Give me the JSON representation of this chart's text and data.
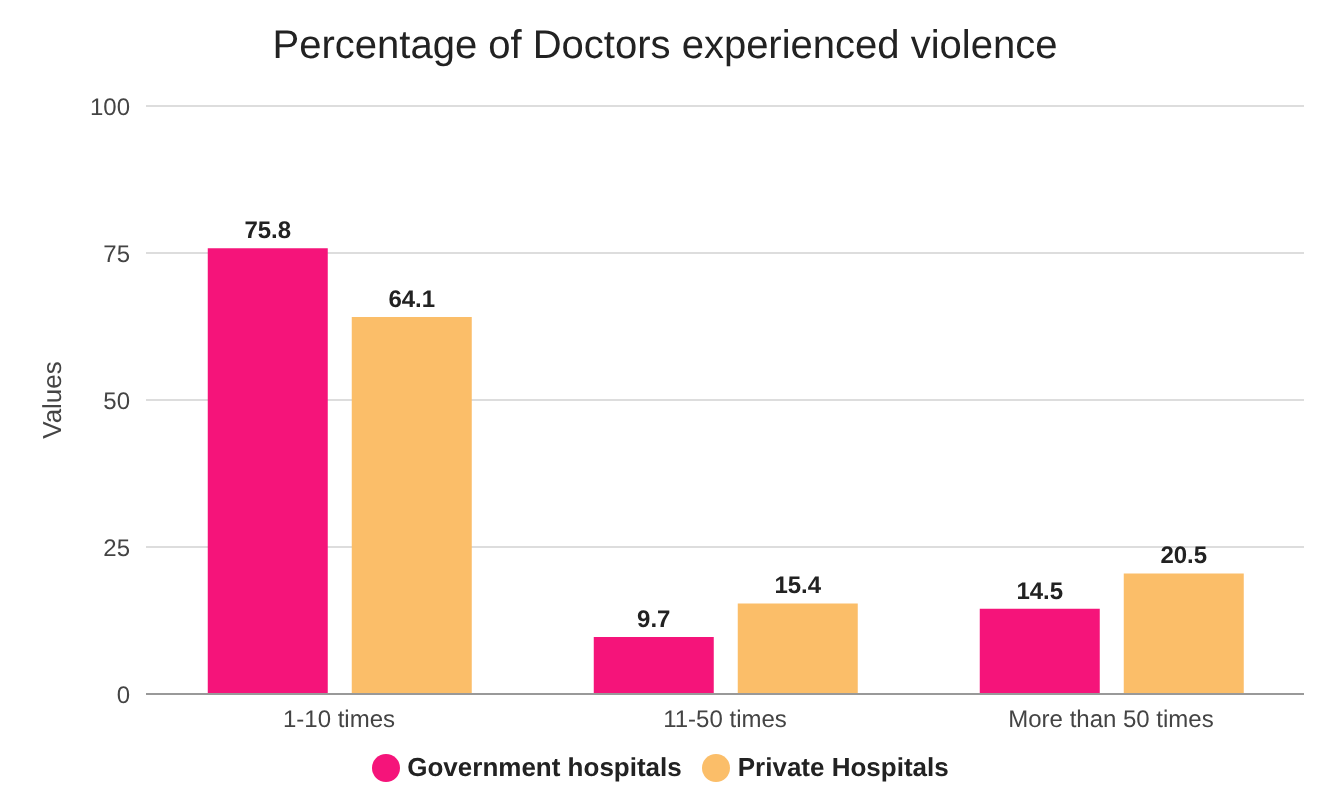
{
  "chart_data": {
    "type": "bar",
    "title": "Percentage of Doctors experienced violence",
    "ylabel": "Values",
    "categories": [
      "1-10 times",
      "11-50 times",
      "More than 50 times"
    ],
    "series": [
      {
        "name": "Government hospitals",
        "color": "#f5147a",
        "values": [
          75.8,
          9.7,
          14.5
        ]
      },
      {
        "name": "Private Hospitals",
        "color": "#fbbe69",
        "values": [
          64.1,
          15.4,
          20.5
        ]
      }
    ],
    "ylim": [
      0,
      100
    ],
    "yticks": [
      0,
      25,
      50,
      75,
      100
    ],
    "grid": "y",
    "legend": "bottom",
    "data_labels": true
  }
}
